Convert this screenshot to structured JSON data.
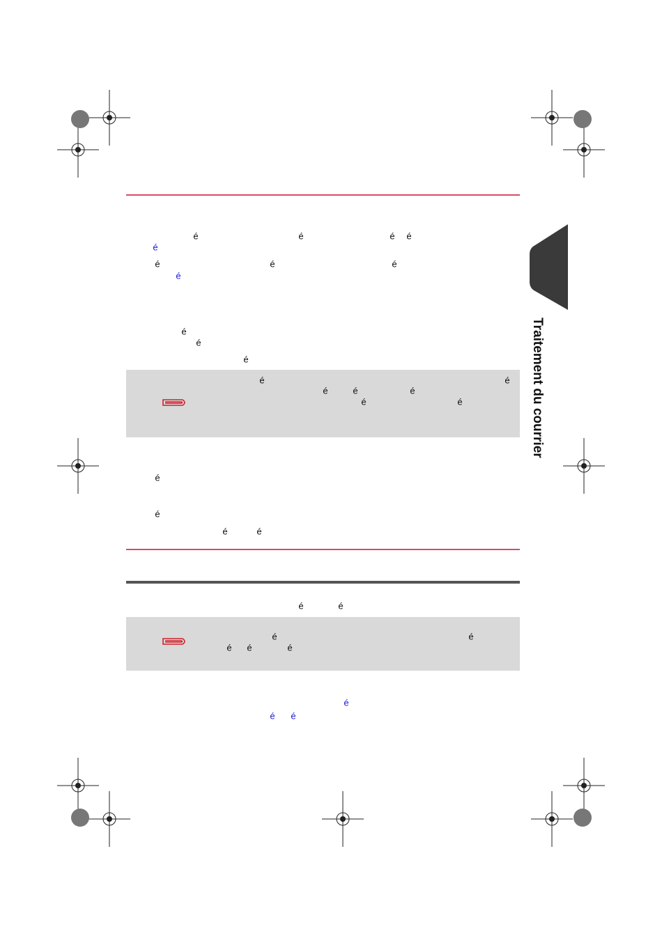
{
  "side_tab": "Traitement du courrier",
  "lines": [
    [
      "é",
      "é",
      "é",
      "é"
    ],
    [
      "é"
    ],
    [
      "é",
      "é",
      "é"
    ],
    [
      "é"
    ],
    [
      "é"
    ],
    [
      "é"
    ],
    [
      "é"
    ],
    [
      "é",
      "é"
    ],
    [
      "é",
      "é",
      "é"
    ],
    [
      "é",
      "é"
    ],
    [
      "é"
    ],
    [
      "é"
    ],
    [
      "é",
      "é"
    ],
    [
      "é",
      "é"
    ],
    [
      "é",
      "é"
    ],
    [
      "é",
      "é",
      "é"
    ],
    [
      "é"
    ],
    [
      "é",
      "é"
    ]
  ]
}
